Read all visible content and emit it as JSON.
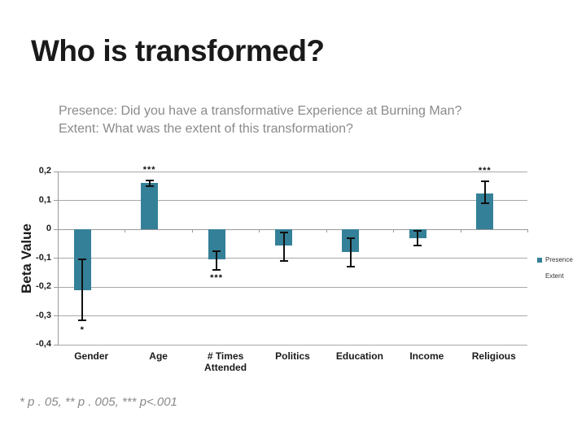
{
  "slide": {
    "title": "Who is transformed?",
    "subtitle_line1": "Presence: Did you have a transformative Experience at Burning Man?",
    "subtitle_line2": "Extent: What was the extent of this transformation?",
    "footnote": "* p . 05, ** p . 005, *** p<.001"
  },
  "colors": {
    "bar_teal": "#348098",
    "gridline": "#A8A8A8",
    "axis_line": "#999999",
    "error_bar": "#111111",
    "text_dark": "#1A1A1A",
    "text_gray": "#8A8A8A"
  },
  "chart_data": {
    "type": "bar",
    "title": "",
    "xlabel": "",
    "ylabel": "Beta Value",
    "ylim": [
      -0.4,
      0.2
    ],
    "grid": true,
    "legend_position": "right",
    "ytick_values": [
      0.2,
      0.1,
      0,
      -0.1,
      -0.2,
      -0.3,
      -0.4
    ],
    "ytick_labels": [
      "0,2",
      "0,1",
      "0",
      "-0,1",
      "-0,2",
      "-0,3",
      "-0,4"
    ],
    "categories": [
      "Gender",
      "Age",
      "# Times Attended",
      "Politics",
      "Education",
      "Income",
      "Religious"
    ],
    "series": [
      {
        "name": "Presence",
        "color": "#348098",
        "values": [
          -0.21,
          0.16,
          -0.105,
          -0.055,
          -0.08,
          -0.03,
          0.125
        ],
        "error_low": [
          -0.315,
          0.15,
          -0.14,
          -0.11,
          -0.13,
          -0.055,
          0.09
        ],
        "error_high": [
          -0.105,
          0.17,
          -0.075,
          -0.01,
          -0.03,
          -0.005,
          0.165
        ],
        "sig": [
          "*",
          "***",
          "***",
          "",
          "",
          "",
          "***"
        ],
        "sig_value": [
          -0.35,
          0.205,
          -0.168,
          null,
          null,
          null,
          0.203
        ]
      },
      {
        "name": "Extent",
        "color": "#FFFFFF",
        "values": [
          null,
          null,
          null,
          null,
          null,
          null,
          null
        ]
      }
    ]
  }
}
